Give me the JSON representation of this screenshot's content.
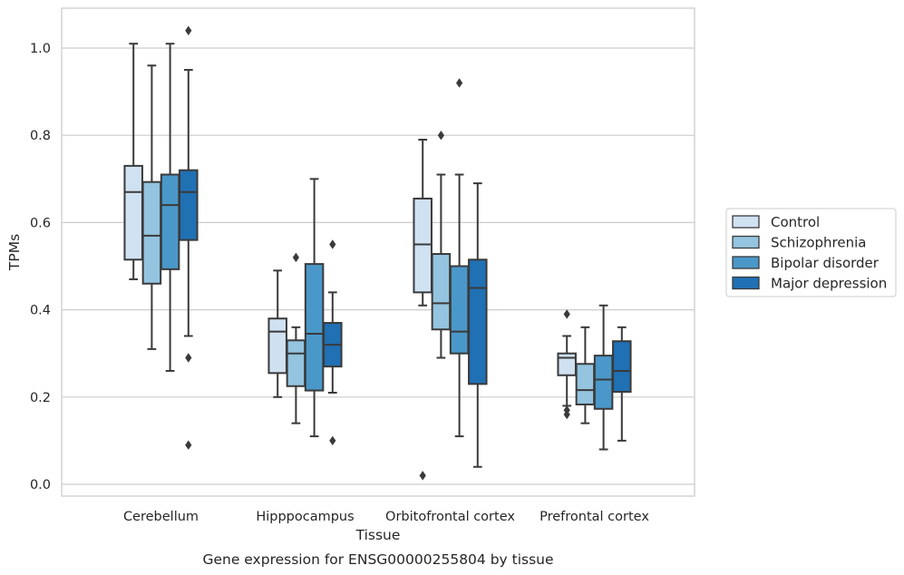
{
  "chart_data": {
    "type": "box",
    "xlabel": "Tissue",
    "ylabel": "TPMs",
    "caption": "Gene expression for ENSG00000255804 by tissue",
    "ylim": [
      -0.03,
      1.09
    ],
    "yticks": [
      "0.0",
      "0.2",
      "0.4",
      "0.6",
      "0.8",
      "1.0"
    ],
    "grid": "horizontal",
    "legend_position": "outside-right",
    "categories": [
      "Cerebellum",
      "Hipppocampus",
      "Orbitofrontal cortex",
      "Prefrontal cortex"
    ],
    "series": [
      {
        "name": "Control",
        "color": "#d0e1f2",
        "boxes": [
          {
            "whisker_low": 0.47,
            "q1": 0.515,
            "median": 0.67,
            "q3": 0.73,
            "whisker_high": 1.01,
            "outliers": []
          },
          {
            "whisker_low": 0.2,
            "q1": 0.255,
            "median": 0.35,
            "q3": 0.38,
            "whisker_high": 0.49,
            "outliers": []
          },
          {
            "whisker_low": 0.41,
            "q1": 0.44,
            "median": 0.55,
            "q3": 0.655,
            "whisker_high": 0.79,
            "outliers": [
              0.02
            ]
          },
          {
            "whisker_low": 0.18,
            "q1": 0.25,
            "median": 0.29,
            "q3": 0.3,
            "whisker_high": 0.34,
            "outliers": [
              0.39,
              0.17,
              0.16
            ]
          }
        ]
      },
      {
        "name": "Schizophrenia",
        "color": "#94c4df",
        "boxes": [
          {
            "whisker_low": 0.31,
            "q1": 0.46,
            "median": 0.57,
            "q3": 0.693,
            "whisker_high": 0.96,
            "outliers": []
          },
          {
            "whisker_low": 0.14,
            "q1": 0.225,
            "median": 0.3,
            "q3": 0.33,
            "whisker_high": 0.36,
            "outliers": [
              0.52
            ]
          },
          {
            "whisker_low": 0.29,
            "q1": 0.355,
            "median": 0.415,
            "q3": 0.528,
            "whisker_high": 0.71,
            "outliers": [
              0.8
            ]
          },
          {
            "whisker_low": 0.14,
            "q1": 0.183,
            "median": 0.216,
            "q3": 0.276,
            "whisker_high": 0.36,
            "outliers": []
          }
        ]
      },
      {
        "name": "Bipolar disorder",
        "color": "#4a98c9",
        "boxes": [
          {
            "whisker_low": 0.26,
            "q1": 0.493,
            "median": 0.64,
            "q3": 0.71,
            "whisker_high": 1.01,
            "outliers": []
          },
          {
            "whisker_low": 0.11,
            "q1": 0.215,
            "median": 0.345,
            "q3": 0.505,
            "whisker_high": 0.7,
            "outliers": []
          },
          {
            "whisker_low": 0.11,
            "q1": 0.3,
            "median": 0.35,
            "q3": 0.5,
            "whisker_high": 0.71,
            "outliers": [
              0.92
            ]
          },
          {
            "whisker_low": 0.08,
            "q1": 0.173,
            "median": 0.24,
            "q3": 0.295,
            "whisker_high": 0.41,
            "outliers": []
          }
        ]
      },
      {
        "name": "Major depression",
        "color": "#2070b4",
        "boxes": [
          {
            "whisker_low": 0.34,
            "q1": 0.56,
            "median": 0.67,
            "q3": 0.72,
            "whisker_high": 0.95,
            "outliers": [
              1.04,
              0.29,
              0.09
            ]
          },
          {
            "whisker_low": 0.21,
            "q1": 0.27,
            "median": 0.32,
            "q3": 0.37,
            "whisker_high": 0.44,
            "outliers": [
              0.55,
              0.1
            ]
          },
          {
            "whisker_low": 0.04,
            "q1": 0.23,
            "median": 0.45,
            "q3": 0.515,
            "whisker_high": 0.69,
            "outliers": []
          },
          {
            "whisker_low": 0.1,
            "q1": 0.212,
            "median": 0.26,
            "q3": 0.328,
            "whisker_high": 0.36,
            "outliers": []
          }
        ]
      }
    ]
  }
}
